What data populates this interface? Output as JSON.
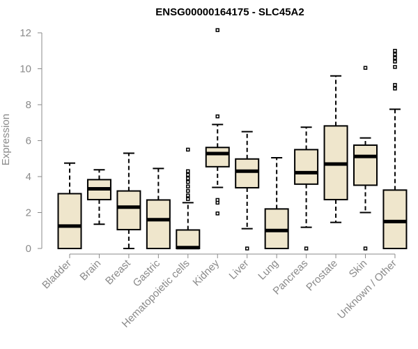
{
  "chart_data": {
    "type": "boxplot",
    "title": "ENSG00000164175 - SLC45A2",
    "xlabel": "",
    "ylabel": "Expression",
    "ylim": [
      0,
      12
    ],
    "yticks": [
      0,
      2,
      4,
      6,
      8,
      10,
      12
    ],
    "grid": false,
    "box_fill": "#efe6cc",
    "box_stroke": "#000000",
    "categories": [
      "Bladder",
      "Brain",
      "Breast",
      "Gastric",
      "Hematopoietic cells",
      "Kidney",
      "Liver",
      "Lung",
      "Pancreas",
      "Prostate",
      "Skin",
      "Unknown / Other"
    ],
    "boxes": [
      {
        "q1": 0.0,
        "median": 1.25,
        "q3": 3.05,
        "whisker_low": 0.0,
        "whisker_high": 4.75,
        "outliers": []
      },
      {
        "q1": 2.72,
        "median": 3.32,
        "q3": 3.83,
        "whisker_low": 1.35,
        "whisker_high": 4.38,
        "outliers": []
      },
      {
        "q1": 1.05,
        "median": 2.3,
        "q3": 3.2,
        "whisker_low": 0.0,
        "whisker_high": 5.3,
        "outliers": []
      },
      {
        "q1": 0.0,
        "median": 1.6,
        "q3": 2.7,
        "whisker_low": 0.0,
        "whisker_high": 4.45,
        "outliers": []
      },
      {
        "q1": 0.0,
        "median": 0.05,
        "q3": 1.03,
        "whisker_low": 0.0,
        "whisker_high": 2.55,
        "outliers": [
          2.75,
          2.95,
          3.2,
          3.45,
          3.7,
          3.9,
          4.1,
          4.3,
          5.5
        ]
      },
      {
        "q1": 4.55,
        "median": 5.28,
        "q3": 5.62,
        "whisker_low": 3.4,
        "whisker_high": 6.9,
        "outliers": [
          1.95,
          2.55,
          2.7,
          7.35,
          12.15
        ]
      },
      {
        "q1": 3.38,
        "median": 4.3,
        "q3": 4.98,
        "whisker_low": 1.1,
        "whisker_high": 6.5,
        "outliers": [
          0.0
        ]
      },
      {
        "q1": 0.0,
        "median": 1.0,
        "q3": 2.2,
        "whisker_low": 0.0,
        "whisker_high": 5.05,
        "outliers": []
      },
      {
        "q1": 3.58,
        "median": 4.22,
        "q3": 5.5,
        "whisker_low": 1.18,
        "whisker_high": 6.75,
        "outliers": [
          0.0
        ]
      },
      {
        "q1": 2.72,
        "median": 4.7,
        "q3": 6.82,
        "whisker_low": 1.45,
        "whisker_high": 9.6,
        "outliers": []
      },
      {
        "q1": 3.52,
        "median": 5.12,
        "q3": 5.75,
        "whisker_low": 2.0,
        "whisker_high": 6.15,
        "outliers": [
          0.0,
          10.05
        ]
      },
      {
        "q1": 0.0,
        "median": 1.5,
        "q3": 3.25,
        "whisker_low": 0.0,
        "whisker_high": 7.75,
        "outliers": [
          8.9,
          9.1,
          10.1,
          10.4,
          10.6,
          10.8,
          11.0
        ]
      }
    ]
  }
}
